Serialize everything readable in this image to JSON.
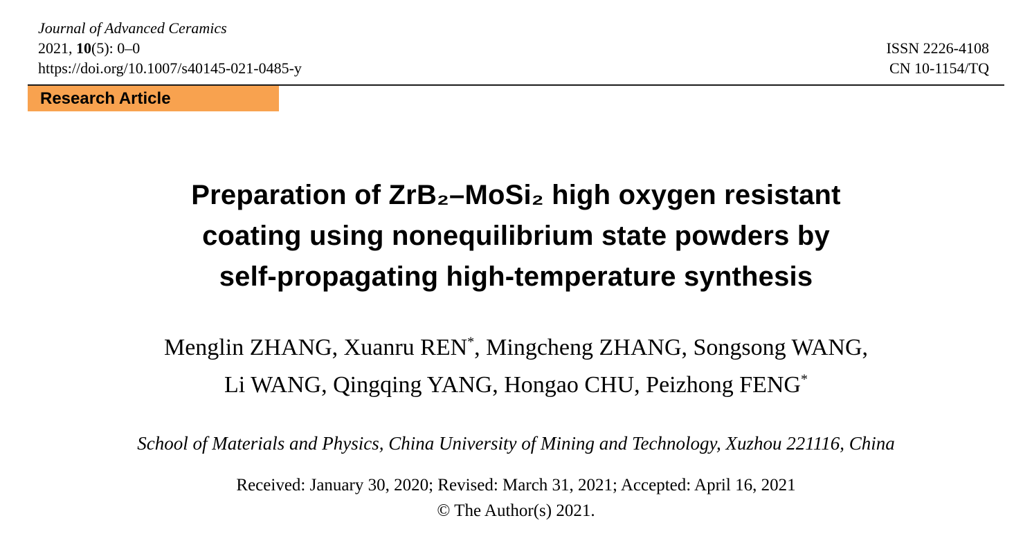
{
  "header": {
    "journal_name": "Journal of Advanced Ceramics",
    "volume_pre": "2021, ",
    "volume_bold": "10",
    "volume_post": "(5): 0–0",
    "doi": "https://doi.org/10.1007/s40145-021-0485-y",
    "issn": "ISSN 2226-4108",
    "cn": "CN 10-1154/TQ"
  },
  "badge": {
    "label": "Research Article",
    "color": "#F8A24F"
  },
  "title": {
    "line1": "Preparation of ZrB₂–MoSi₂ high oxygen resistant",
    "line2": "coating using nonequilibrium state powders by",
    "line3": "self-propagating high-temperature synthesis"
  },
  "authors": {
    "line1_pre": "Menglin ZHANG, Xuanru REN",
    "line1_sup": "*",
    "line1_post": ", Mingcheng ZHANG, Songsong WANG,",
    "line2_pre": "Li WANG, Qingqing YANG, Hongao CHU, Peizhong FENG",
    "line2_sup": "*"
  },
  "affiliation": "School of Materials and Physics, China University of Mining and Technology, Xuzhou 221116, China",
  "dates": "Received: January 30, 2020; Revised: March 31, 2021; Accepted: April 16, 2021",
  "copyright": "© The Author(s) 2021."
}
